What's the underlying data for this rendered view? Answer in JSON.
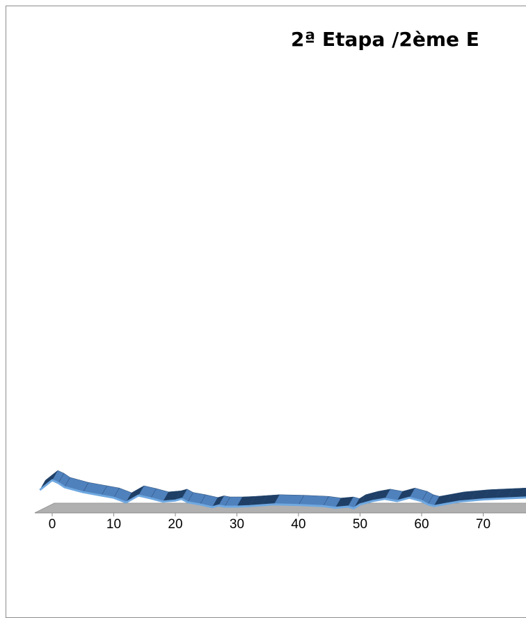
{
  "chart_data": {
    "type": "area",
    "title": "2ª Etapa /2ème E",
    "xlabel": "",
    "ylabel": "",
    "xlim": [
      -2,
      80
    ],
    "ylim": [
      0,
      1000
    ],
    "x_ticks": [
      0,
      10,
      20,
      30,
      40,
      50,
      60,
      70
    ],
    "grid": false,
    "legend": "none",
    "three_d": true,
    "colors": {
      "series_fill": "#4f81bd",
      "series_edge": "#6fa8e0",
      "series_dark": "#1f3f66",
      "floor": "#b0b0b0"
    },
    "series": [
      {
        "x": [
          -2,
          0,
          1,
          2,
          5,
          8,
          10,
          12,
          14,
          16,
          18,
          20,
          21,
          22,
          24,
          26,
          27,
          28,
          30,
          32,
          34,
          36,
          40,
          44,
          46,
          48,
          49,
          50,
          52,
          54,
          56,
          58,
          60,
          61,
          62,
          64,
          66,
          68,
          70,
          72,
          74,
          76,
          78,
          80
        ],
        "y": [
          70,
          105,
          95,
          80,
          62,
          50,
          42,
          25,
          50,
          40,
          28,
          32,
          38,
          26,
          18,
          8,
          14,
          10,
          10,
          12,
          15,
          18,
          16,
          12,
          6,
          10,
          4,
          18,
          30,
          38,
          30,
          42,
          30,
          18,
          12,
          20,
          28,
          32,
          36,
          38,
          40,
          42,
          44,
          45
        ]
      }
    ]
  }
}
